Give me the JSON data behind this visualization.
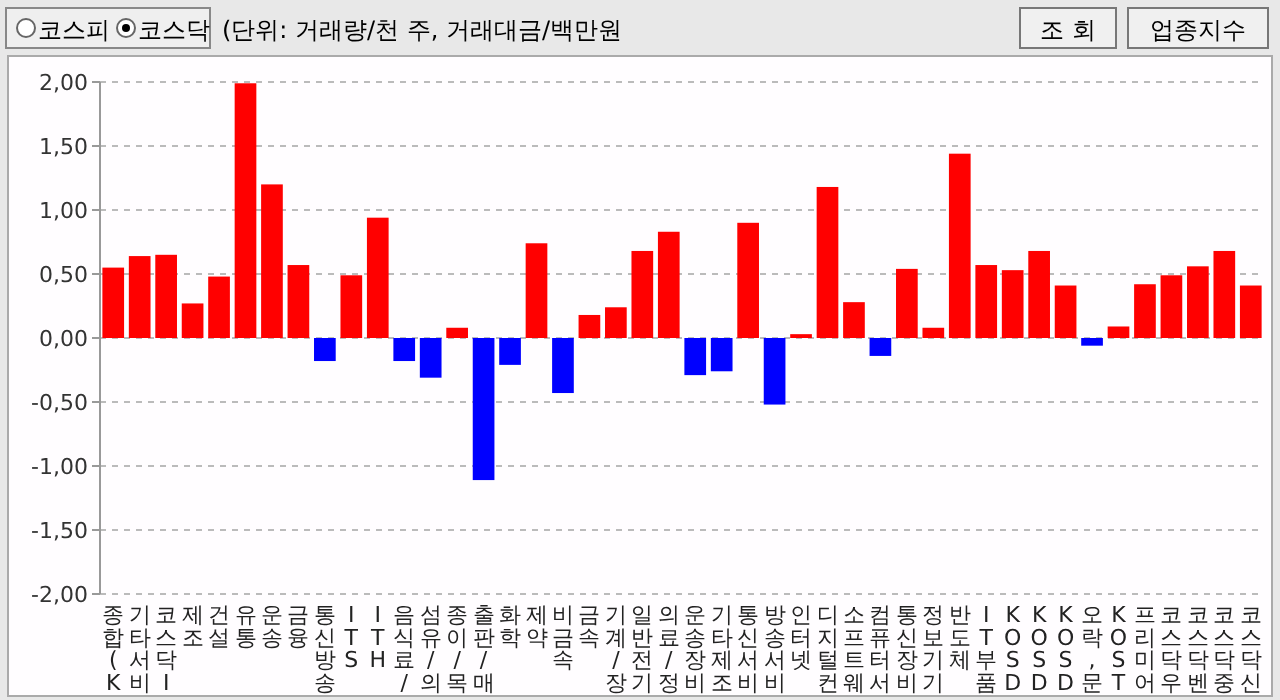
{
  "chart_data": {
    "type": "bar",
    "title": "(단위: 거래량/천 주, 거래대금/백만원",
    "annotations": [
      "코스피",
      "코스닥",
      "조 회",
      "업종지수"
    ],
    "categories": [
      "종합(K",
      "기타서비",
      "코스닥I",
      "제조",
      "건설",
      "유통",
      "운송",
      "금융",
      "통신방송",
      "ITS",
      "ITH",
      "음식료/",
      "섬유/의",
      "종이/목",
      "출판/매",
      "화학",
      "제약",
      "비금속",
      "금속",
      "기계/장",
      "일반전기",
      "의료/정",
      "운송장비",
      "기타제조",
      "통신서비",
      "방송서비",
      "인터넷",
      "디지털컨",
      "소프트웨",
      "컴퓨터서",
      "통신장비",
      "정보기기",
      "반도체",
      "IT부품",
      "KOSD",
      "KOSD",
      "KOSD",
      "오락,문",
      "KOST",
      "프리미어",
      "코스닥우",
      "코스닥벤",
      "코스닥중",
      "코스닥신"
    ],
    "values": [
      0.55,
      0.64,
      0.65,
      0.27,
      0.48,
      1.99,
      1.2,
      0.57,
      -0.18,
      0.49,
      0.94,
      -0.18,
      -0.31,
      0.08,
      -1.11,
      -0.21,
      0.74,
      -0.43,
      0.18,
      0.24,
      0.68,
      0.83,
      -0.29,
      -0.26,
      0.9,
      -0.52,
      0.03,
      1.18,
      0.28,
      -0.14,
      0.54,
      0.08,
      1.44,
      0.57,
      0.53,
      0.68,
      0.41,
      -0.06,
      0.09,
      0.42,
      0.49,
      0.56,
      0.68,
      0.41
    ],
    "colors": [
      "#ff0000",
      "#ff0000",
      "#ff0000",
      "#ff0000",
      "#ff0000",
      "#ff0000",
      "#ff0000",
      "#ff0000",
      "#0000ff",
      "#ff0000",
      "#ff0000",
      "#0000ff",
      "#0000ff",
      "#ff0000",
      "#0000ff",
      "#0000ff",
      "#ff0000",
      "#0000ff",
      "#ff0000",
      "#ff0000",
      "#ff0000",
      "#ff0000",
      "#0000ff",
      "#0000ff",
      "#ff0000",
      "#0000ff",
      "#ff0000",
      "#ff0000",
      "#ff0000",
      "#0000ff",
      "#ff0000",
      "#ff0000",
      "#ff0000",
      "#ff0000",
      "#ff0000",
      "#ff0000",
      "#ff0000",
      "#0000ff",
      "#ff0000",
      "#ff0000",
      "#ff0000",
      "#ff0000",
      "#ff0000",
      "#ff0000"
    ],
    "ylim": [
      -2,
      2
    ],
    "yticks": [
      {
        "value": 2,
        "label": "2,00"
      },
      {
        "value": 1.5,
        "label": "1,50"
      },
      {
        "value": 1,
        "label": "1,00"
      },
      {
        "value": 0.5,
        "label": "0,50"
      },
      {
        "value": 0,
        "label": "0,00"
      },
      {
        "value": -0.5,
        "label": "-0,50"
      },
      {
        "value": -1,
        "label": "-1,00"
      },
      {
        "value": -1.5,
        "label": "-1,50"
      },
      {
        "value": -2,
        "label": "-2,00"
      }
    ],
    "grid": "y"
  }
}
